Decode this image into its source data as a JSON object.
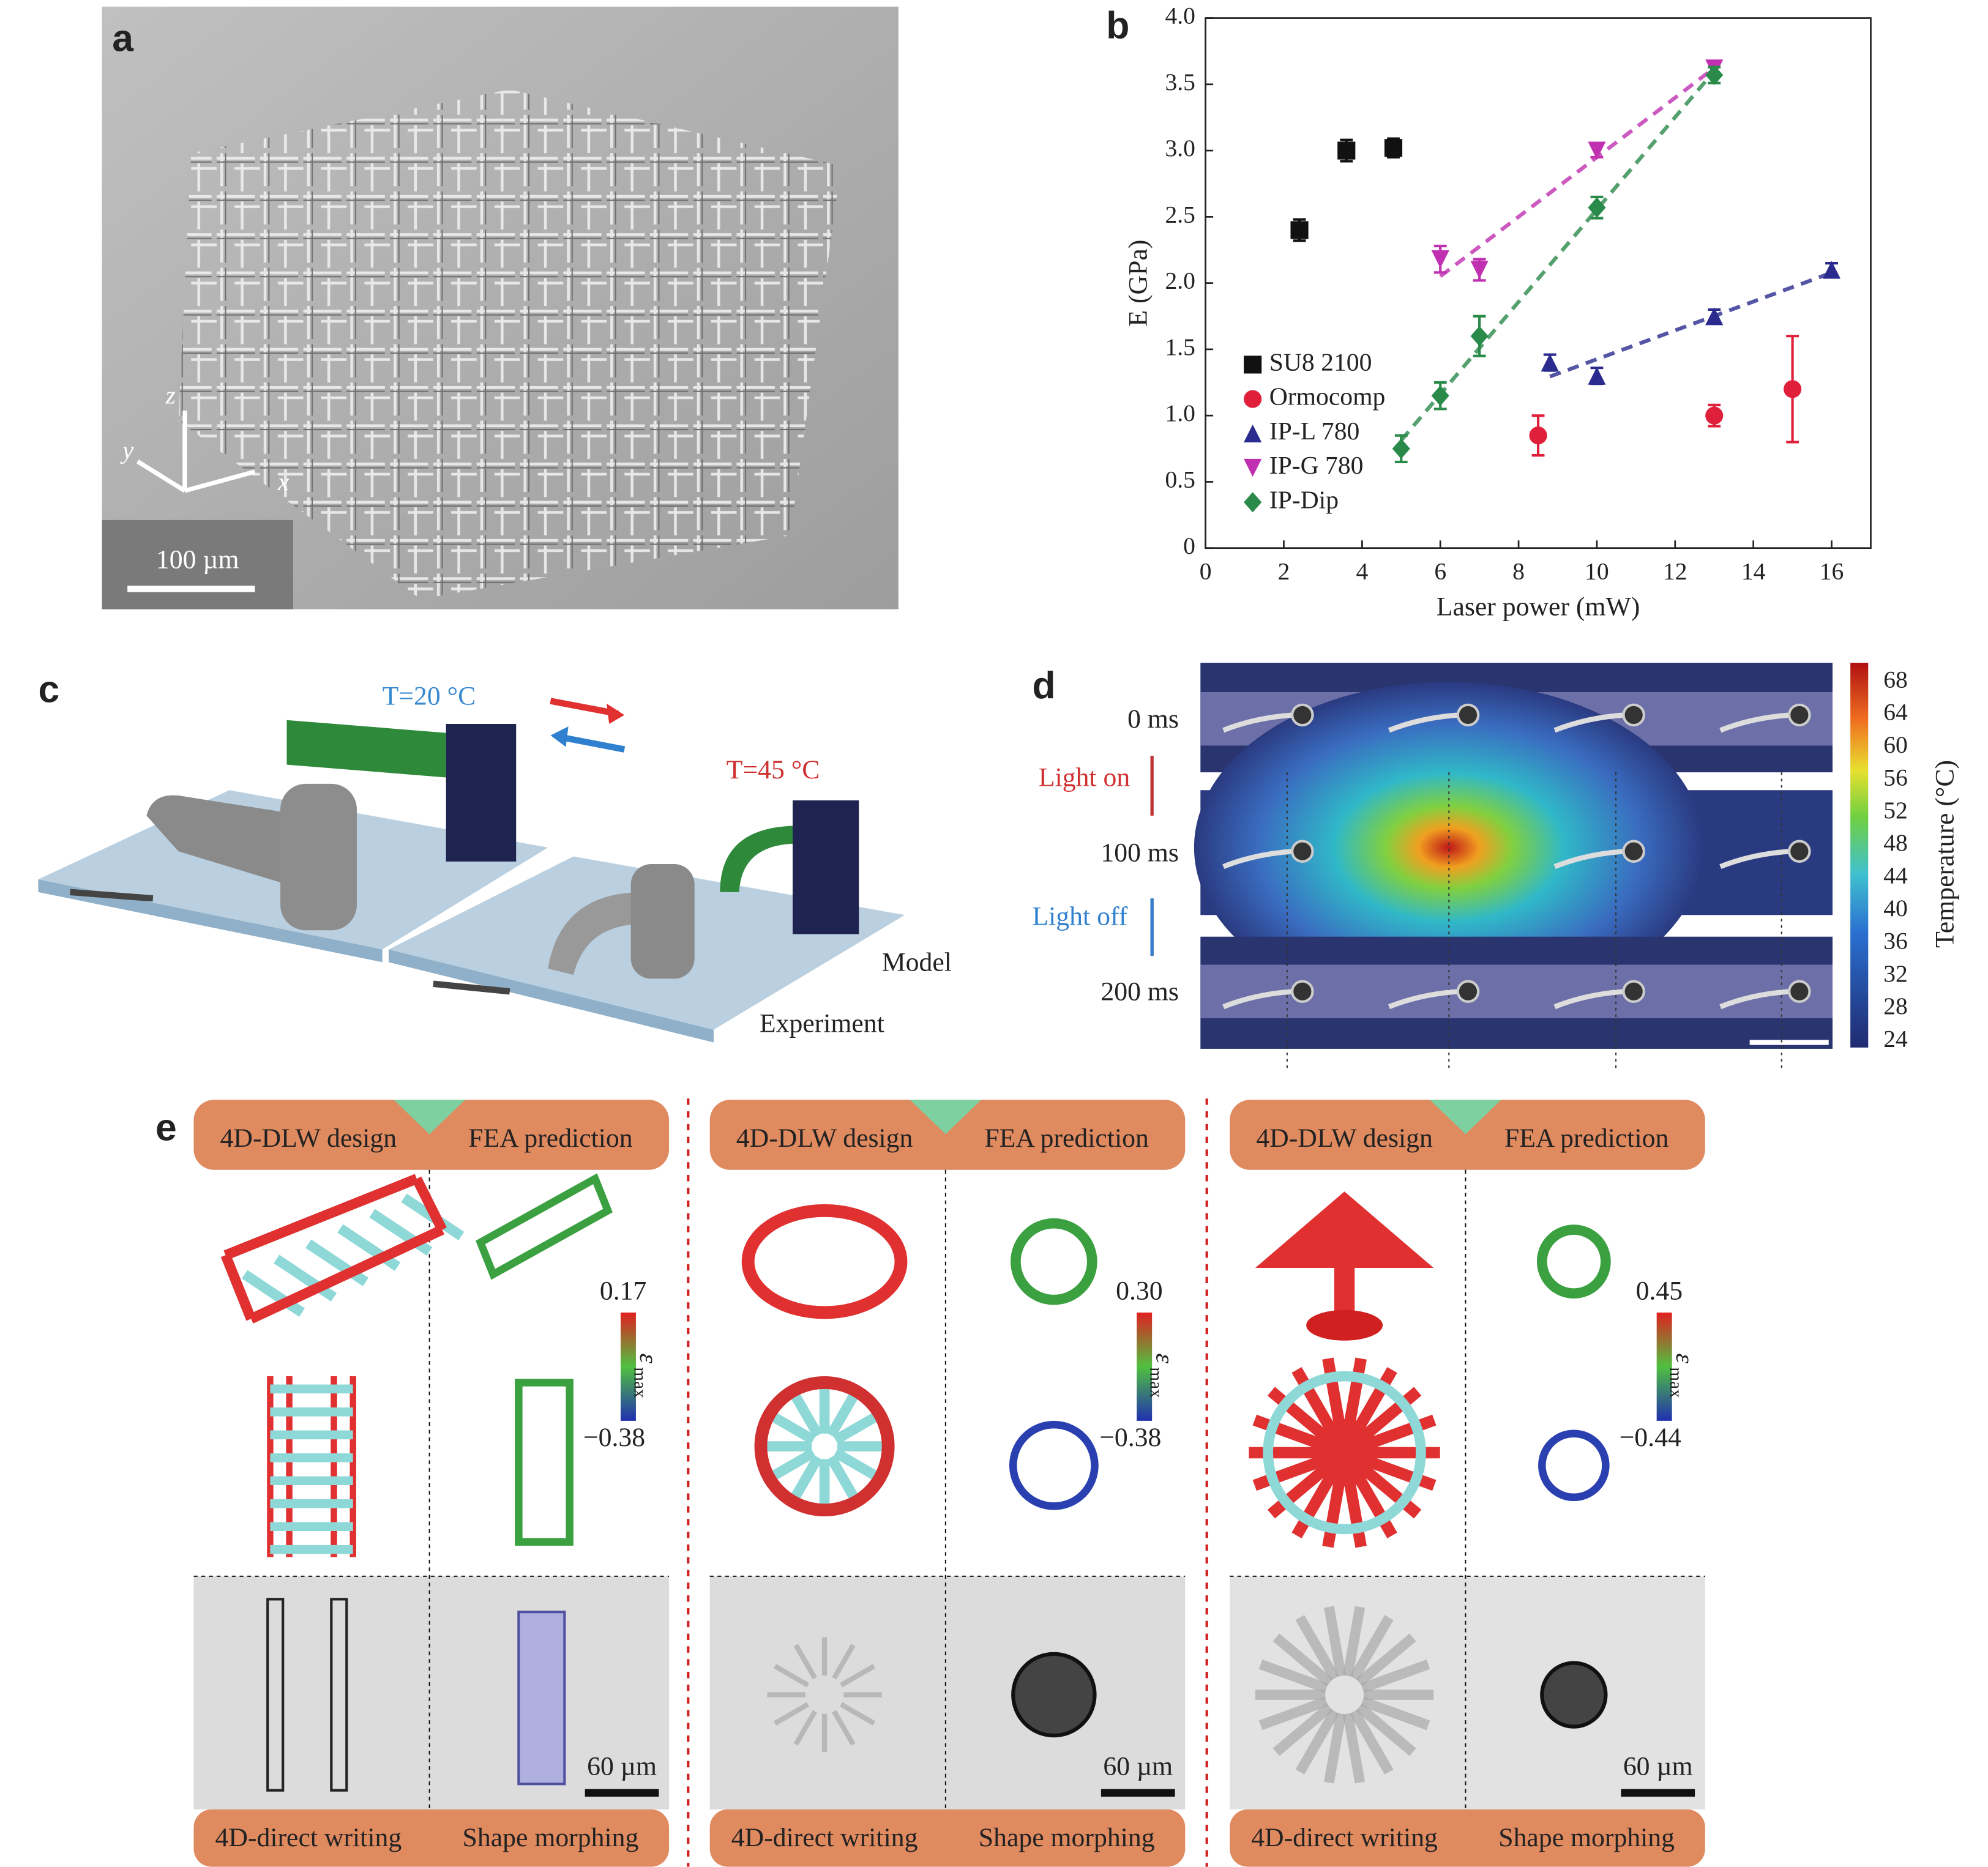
{
  "figure": {
    "labels": [
      "a",
      "b",
      "c",
      "d",
      "e"
    ]
  },
  "panel_a": {
    "scale_bar": "100 µm",
    "axes": [
      "z",
      "y",
      "x"
    ]
  },
  "chart_data": {
    "type": "scatter",
    "xlabel": "Laser power (mW)",
    "ylabel": "E (GPa)",
    "xlim": [
      0,
      17
    ],
    "xticks": [
      0,
      2,
      4,
      6,
      8,
      10,
      12,
      14,
      16
    ],
    "ylim": [
      0,
      4
    ],
    "yticks": [
      0,
      0.5,
      {
        "value": 1,
        "label": "1.0"
      },
      1.5,
      {
        "value": 2,
        "label": "2.0"
      },
      2.5,
      {
        "value": 3,
        "label": "3.0"
      },
      3.5,
      {
        "value": 4,
        "label": "4.0"
      }
    ],
    "legend": "lower-left",
    "series": [
      {
        "name": "SU8 2100",
        "color": "#111111",
        "marker": "square",
        "fit_line": false,
        "x": [
          2.4,
          3.6,
          4.8
        ],
        "values": [
          2.4,
          3.0,
          3.02
        ],
        "errors": [
          0.08,
          0.08,
          0.07
        ]
      },
      {
        "name": "Ormocomp",
        "color": "#e0203a",
        "marker": "circle",
        "fit_line": false,
        "x": [
          8.5,
          13,
          15
        ],
        "values": [
          0.85,
          1.0,
          1.2
        ],
        "errors": [
          0.15,
          0.08,
          0.4
        ]
      },
      {
        "name": "IP-L 780",
        "color": "#2b2b8f",
        "marker": "triangle",
        "fit_line": true,
        "x": [
          8.8,
          10,
          13,
          16
        ],
        "values": [
          1.4,
          1.3,
          1.75,
          2.1
        ],
        "errors": [
          0.06,
          0.06,
          0.05,
          0.05
        ]
      },
      {
        "name": "IP-G 780",
        "color": "#c030b0",
        "marker": "triangle-down",
        "fit_line": true,
        "x": [
          6,
          7,
          10,
          13
        ],
        "values": [
          2.18,
          2.1,
          3.0,
          3.62
        ],
        "errors": [
          0.1,
          0.08,
          0.05,
          0.05
        ]
      },
      {
        "name": "IP-Dip",
        "color": "#2a8a4a",
        "marker": "diamond",
        "fit_line": true,
        "x": [
          5,
          6,
          7,
          10,
          13
        ],
        "values": [
          0.75,
          1.15,
          1.6,
          2.57,
          3.57
        ],
        "errors": [
          0.1,
          0.1,
          0.15,
          0.08,
          0.06
        ]
      }
    ]
  },
  "panel_c": {
    "cold": "T=20 °C",
    "hot": "T=45 °C",
    "model": "Model",
    "experiment": "Experiment"
  },
  "panel_d": {
    "times": [
      "0 ms",
      "100 ms",
      "200 ms"
    ],
    "light_on": "Light on",
    "light_off": "Light off",
    "colorbar_label": "Temperature (°C)",
    "colorbar_ticks": [
      68,
      64,
      60,
      56,
      52,
      48,
      44,
      40,
      36,
      32,
      28,
      24
    ]
  },
  "panel_e": {
    "columns": [
      {
        "design": "4D-DLW design",
        "prediction": "FEA prediction",
        "strain_max": "0.17",
        "strain_min": "−0.38",
        "strain_symbol": "ε",
        "strain_sub": "max",
        "scale_bar": "60 µm",
        "writing": "4D-direct writing",
        "morphing": "Shape morphing"
      },
      {
        "design": "4D-DLW design",
        "prediction": "FEA prediction",
        "strain_max": "0.30",
        "strain_min": "−0.38",
        "strain_symbol": "ε",
        "strain_sub": "max",
        "scale_bar": "60 µm",
        "writing": "4D-direct writing",
        "morphing": "Shape morphing"
      },
      {
        "design": "4D-DLW design",
        "prediction": "FEA prediction",
        "strain_max": "0.45",
        "strain_min": "−0.44",
        "strain_symbol": "ε",
        "strain_sub": "max",
        "scale_bar": "60 µm",
        "writing": "4D-direct writing",
        "morphing": "Shape morphing"
      }
    ]
  }
}
